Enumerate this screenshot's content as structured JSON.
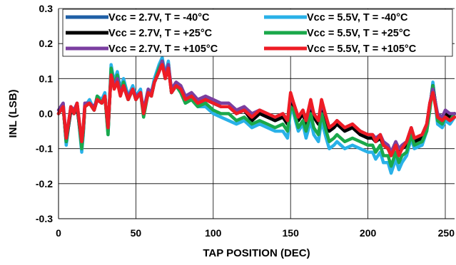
{
  "chart_data": {
    "type": "line",
    "title": "",
    "xlabel": "TAP POSITION (DEC)",
    "ylabel": "INL (LSB)",
    "xlim": [
      0,
      256
    ],
    "ylim": [
      -0.3,
      0.3
    ],
    "xticks": [
      0,
      50,
      100,
      150,
      200,
      250
    ],
    "xtick_labels": [
      "0",
      "50",
      "100",
      "150",
      "200",
      "250"
    ],
    "yticks": [
      -0.3,
      -0.2,
      -0.1,
      0.0,
      0.1,
      0.2,
      0.3
    ],
    "ytick_labels": [
      "-0.3",
      "-0.2",
      "-0.1",
      "0.0",
      "0.1",
      "0.2",
      "0.3"
    ],
    "grid": true,
    "legend_position": "top",
    "x": [
      0,
      3,
      5,
      8,
      10,
      12,
      15,
      16,
      17,
      20,
      23,
      25,
      28,
      30,
      32,
      34,
      36,
      38,
      40,
      42,
      45,
      48,
      50,
      53,
      55,
      58,
      60,
      62,
      65,
      67,
      69,
      71,
      73,
      76,
      79,
      82,
      86,
      90,
      95,
      100,
      105,
      110,
      115,
      120,
      125,
      130,
      135,
      140,
      145,
      148,
      150,
      152,
      155,
      158,
      160,
      163,
      165,
      168,
      170,
      173,
      175,
      178,
      180,
      185,
      190,
      195,
      200,
      203,
      205,
      208,
      210,
      213,
      215,
      218,
      220,
      222,
      225,
      228,
      230,
      235,
      238,
      240,
      242,
      245,
      248,
      250,
      253,
      256
    ],
    "series": [
      {
        "name": "Vcc = 2.7V, T = -40°C",
        "color": "#1f5fa6",
        "values": [
          0.0,
          0.02,
          -0.08,
          0.01,
          0.0,
          0.02,
          -0.09,
          -0.05,
          0.02,
          0.03,
          0.01,
          0.04,
          0.03,
          0.05,
          -0.05,
          0.12,
          0.08,
          0.1,
          0.06,
          0.08,
          0.04,
          0.07,
          0.04,
          0.06,
          0.0,
          0.06,
          0.05,
          0.09,
          0.12,
          0.15,
          0.1,
          0.14,
          0.06,
          0.08,
          0.07,
          0.04,
          0.05,
          0.03,
          0.04,
          0.03,
          0.02,
          0.02,
          0.0,
          0.01,
          -0.02,
          0.0,
          -0.01,
          -0.02,
          -0.01,
          -0.03,
          0.03,
          0.02,
          -0.02,
          0.0,
          -0.03,
          0.02,
          -0.01,
          -0.03,
          0.02,
          -0.02,
          -0.05,
          -0.04,
          -0.03,
          -0.05,
          -0.04,
          -0.06,
          -0.07,
          -0.07,
          -0.08,
          -0.07,
          -0.09,
          -0.1,
          -0.12,
          -0.09,
          -0.11,
          -0.1,
          -0.09,
          -0.05,
          -0.08,
          -0.07,
          -0.04,
          0.02,
          0.08,
          -0.01,
          -0.02,
          0.0,
          -0.01,
          0.0
        ]
      },
      {
        "name": "Vcc = 5.5V, T = -40°C",
        "color": "#29b1e8",
        "values": [
          0.0,
          0.03,
          -0.09,
          0.02,
          0.0,
          0.03,
          -0.11,
          -0.06,
          0.02,
          0.04,
          0.01,
          0.05,
          0.04,
          0.06,
          -0.06,
          0.14,
          0.09,
          0.12,
          0.07,
          0.1,
          0.05,
          0.08,
          0.05,
          0.07,
          0.0,
          0.07,
          0.06,
          0.1,
          0.14,
          0.16,
          0.11,
          0.15,
          0.06,
          0.08,
          0.06,
          0.03,
          0.04,
          0.02,
          0.02,
          0.0,
          -0.01,
          -0.02,
          -0.03,
          -0.02,
          -0.04,
          -0.03,
          -0.04,
          -0.05,
          -0.05,
          -0.07,
          0.01,
          0.0,
          -0.05,
          -0.03,
          -0.07,
          -0.02,
          -0.06,
          -0.08,
          -0.02,
          -0.07,
          -0.1,
          -0.09,
          -0.08,
          -0.1,
          -0.09,
          -0.1,
          -0.11,
          -0.11,
          -0.13,
          -0.11,
          -0.14,
          -0.14,
          -0.17,
          -0.13,
          -0.16,
          -0.14,
          -0.12,
          -0.07,
          -0.1,
          -0.09,
          -0.05,
          0.01,
          0.09,
          -0.03,
          -0.04,
          -0.02,
          -0.03,
          -0.01
        ]
      },
      {
        "name": "Vcc = 2.7V, T = +25°C",
        "color": "#000000",
        "values": [
          0.0,
          0.02,
          -0.08,
          0.01,
          0.0,
          0.02,
          -0.09,
          -0.05,
          0.02,
          0.03,
          0.01,
          0.04,
          0.03,
          0.05,
          -0.05,
          0.12,
          0.08,
          0.1,
          0.06,
          0.08,
          0.04,
          0.07,
          0.04,
          0.06,
          0.0,
          0.06,
          0.05,
          0.09,
          0.12,
          0.15,
          0.1,
          0.14,
          0.06,
          0.08,
          0.07,
          0.04,
          0.05,
          0.03,
          0.04,
          0.03,
          0.02,
          0.02,
          0.0,
          0.01,
          -0.02,
          0.0,
          -0.01,
          -0.02,
          -0.01,
          -0.03,
          0.03,
          0.02,
          -0.02,
          0.0,
          -0.03,
          0.02,
          -0.01,
          -0.03,
          0.02,
          -0.02,
          -0.05,
          -0.04,
          -0.03,
          -0.05,
          -0.04,
          -0.06,
          -0.07,
          -0.07,
          -0.08,
          -0.07,
          -0.09,
          -0.1,
          -0.12,
          -0.09,
          -0.11,
          -0.1,
          -0.09,
          -0.05,
          -0.08,
          -0.07,
          -0.04,
          0.02,
          0.08,
          -0.01,
          -0.02,
          0.0,
          -0.01,
          0.0
        ]
      },
      {
        "name": "Vcc = 5.5V, T = +25°C",
        "color": "#1aa84a",
        "values": [
          0.0,
          0.02,
          -0.08,
          0.02,
          0.0,
          0.03,
          -0.1,
          -0.05,
          0.02,
          0.03,
          0.01,
          0.05,
          0.03,
          0.05,
          -0.06,
          0.13,
          0.08,
          0.11,
          0.06,
          0.09,
          0.04,
          0.07,
          0.04,
          0.06,
          -0.01,
          0.06,
          0.05,
          0.09,
          0.13,
          0.15,
          0.1,
          0.14,
          0.06,
          0.08,
          0.06,
          0.03,
          0.04,
          0.02,
          0.03,
          0.01,
          0.0,
          0.0,
          -0.02,
          -0.01,
          -0.03,
          -0.02,
          -0.03,
          -0.04,
          -0.03,
          -0.05,
          0.02,
          0.01,
          -0.04,
          -0.02,
          -0.05,
          0.0,
          -0.04,
          -0.06,
          0.0,
          -0.05,
          -0.08,
          -0.07,
          -0.06,
          -0.08,
          -0.07,
          -0.08,
          -0.09,
          -0.09,
          -0.11,
          -0.09,
          -0.12,
          -0.12,
          -0.15,
          -0.11,
          -0.14,
          -0.12,
          -0.11,
          -0.06,
          -0.09,
          -0.08,
          -0.05,
          0.01,
          0.08,
          -0.02,
          -0.03,
          -0.01,
          -0.02,
          0.0
        ]
      },
      {
        "name": "Vcc = 2.7V, T = +105°C",
        "color": "#7b3fa0",
        "values": [
          0.01,
          0.03,
          -0.07,
          0.02,
          0.01,
          0.03,
          -0.08,
          -0.04,
          0.03,
          0.03,
          0.02,
          0.04,
          0.03,
          0.05,
          -0.04,
          0.11,
          0.08,
          0.1,
          0.06,
          0.08,
          0.05,
          0.07,
          0.05,
          0.06,
          0.01,
          0.07,
          0.06,
          0.09,
          0.12,
          0.15,
          0.11,
          0.14,
          0.07,
          0.09,
          0.08,
          0.05,
          0.06,
          0.04,
          0.05,
          0.04,
          0.03,
          0.03,
          0.01,
          0.02,
          0.0,
          0.01,
          0.0,
          -0.01,
          0.0,
          -0.02,
          0.05,
          0.03,
          -0.01,
          0.01,
          -0.02,
          0.03,
          0.0,
          -0.02,
          0.03,
          -0.01,
          -0.04,
          -0.03,
          -0.02,
          -0.04,
          -0.03,
          -0.05,
          -0.06,
          -0.06,
          -0.07,
          -0.06,
          -0.08,
          -0.09,
          -0.11,
          -0.08,
          -0.1,
          -0.09,
          -0.08,
          -0.04,
          -0.07,
          -0.06,
          -0.03,
          0.03,
          0.07,
          0.0,
          -0.01,
          0.01,
          0.0,
          0.0
        ]
      },
      {
        "name": "Vcc = 5.5V, T = +105°C",
        "color": "#ee1c25",
        "values": [
          0.0,
          0.02,
          -0.07,
          0.02,
          0.0,
          0.03,
          -0.08,
          -0.04,
          0.02,
          0.03,
          0.01,
          0.04,
          0.03,
          0.05,
          -0.04,
          0.11,
          0.07,
          0.09,
          0.05,
          0.08,
          0.04,
          0.07,
          0.04,
          0.06,
          0.0,
          0.06,
          0.05,
          0.09,
          0.12,
          0.14,
          0.1,
          0.13,
          0.06,
          0.08,
          0.07,
          0.04,
          0.05,
          0.03,
          0.04,
          0.03,
          0.02,
          0.02,
          0.0,
          0.01,
          -0.01,
          0.01,
          0.0,
          -0.01,
          0.0,
          -0.02,
          0.06,
          0.03,
          -0.01,
          0.01,
          -0.02,
          0.04,
          0.0,
          -0.02,
          0.04,
          -0.01,
          -0.04,
          -0.03,
          -0.02,
          -0.04,
          -0.03,
          -0.05,
          -0.06,
          -0.06,
          -0.08,
          -0.06,
          -0.09,
          -0.1,
          -0.12,
          -0.09,
          -0.12,
          -0.1,
          -0.08,
          -0.04,
          -0.07,
          -0.06,
          -0.03,
          0.03,
          0.06,
          -0.01,
          -0.02,
          -0.01,
          -0.02,
          -0.01
        ]
      }
    ],
    "legend": [
      "Vcc = 2.7V, T = -40°C",
      "Vcc = 5.5V, T = -40°C",
      "Vcc = 2.7V, T = +25°C",
      "Vcc = 5.5V, T = +25°C",
      "Vcc = 2.7V, T = +105°C",
      "Vcc = 5.5V, T = +105°C"
    ]
  }
}
